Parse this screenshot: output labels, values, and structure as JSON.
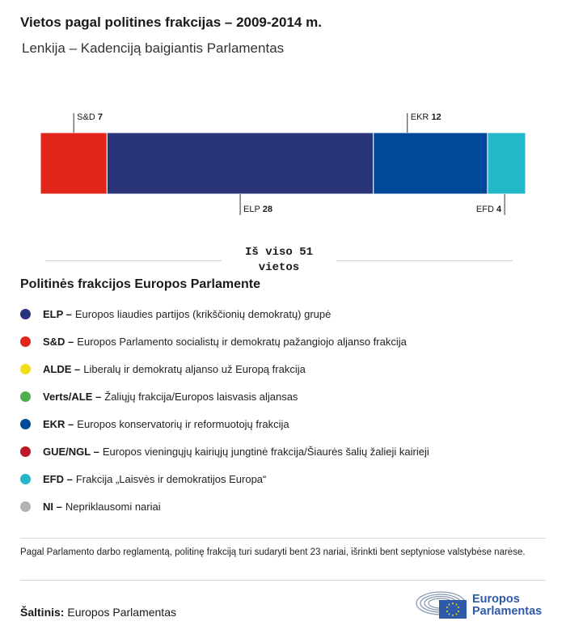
{
  "header": {
    "title": "Vietos pagal politines frakcijas – 2009-2014 m.",
    "subtitle": "Lenkija – Kadenciją baigiantis Parlamentas"
  },
  "chart_data": {
    "type": "bar",
    "stacked": true,
    "orientation": "horizontal",
    "categories": [
      "S&D",
      "ELP",
      "EKR",
      "EFD"
    ],
    "values": [
      7,
      28,
      12,
      4
    ],
    "colors": [
      "#e1251b",
      "#2a3479",
      "#004899",
      "#22b8c9"
    ],
    "label_position": [
      "top",
      "bottom",
      "top",
      "bottom"
    ],
    "total": 51
  },
  "total": {
    "text": "Iš viso 51 vietos"
  },
  "legend": {
    "title": "Politinės frakcijos Europos Parlamente",
    "items": [
      {
        "abbr": "ELP –",
        "desc": "Europos liaudies partijos (krikščionių demokratų) grupė",
        "color": "#2a3479"
      },
      {
        "abbr": "S&D –",
        "desc": "Europos Parlamento socialistų ir demokratų pažangiojo aljanso frakcija",
        "color": "#e1251b"
      },
      {
        "abbr": "ALDE –",
        "desc": "Liberalų ir demokratų aljanso už Europą frakcija",
        "color": "#f2de18"
      },
      {
        "abbr": "Verts/ALE –",
        "desc": "Žaliųjų frakcija/Europos laisvasis aljansas",
        "color": "#4caf50"
      },
      {
        "abbr": "EKR –",
        "desc": "Europos konservatorių ir reformuotojų frakcija",
        "color": "#004899"
      },
      {
        "abbr": "GUE/NGL –",
        "desc": "Europos vieningųjų kairiųjų jungtinė frakcija/Šiaurės šalių žalieji kairieji",
        "color": "#c0172a"
      },
      {
        "abbr": "EFD –",
        "desc": "Frakcija „Laisvės ir demokratijos Europa“",
        "color": "#22b8c9"
      },
      {
        "abbr": "NI –",
        "desc": "Nepriklausomi nariai",
        "color": "#b3b3b3"
      }
    ]
  },
  "note": "Pagal Parlamento darbo reglamentą, politinę frakciją turi sudaryti bent 23 nariai, išrinkti bent septyniose valstybėse narėse.",
  "source": {
    "label": "Šaltinis:",
    "value": "Europos Parlamentas"
  },
  "logo": {
    "line1": "Europos",
    "line2": "Parlamentas"
  }
}
